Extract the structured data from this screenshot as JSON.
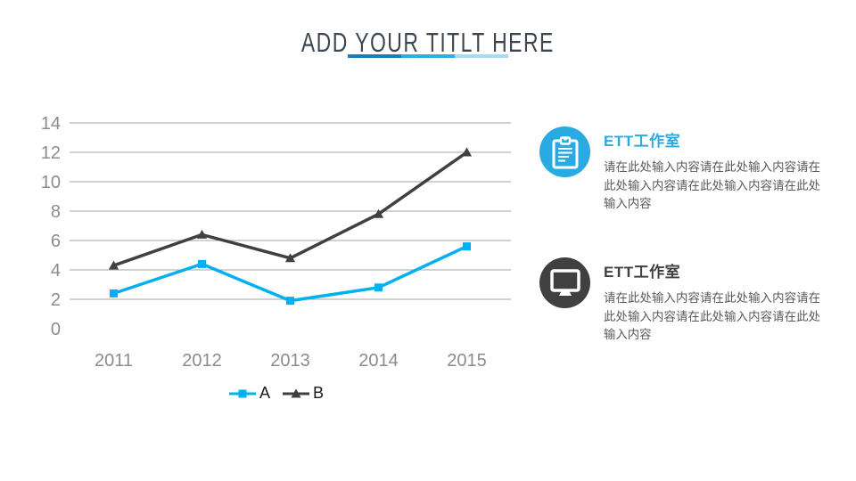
{
  "slide_title": {
    "text": "ADD YOUR TITLT HERE",
    "underline_colors": [
      "#1480c4",
      "#29aee9",
      "#a9daf5"
    ]
  },
  "chart_data": {
    "type": "line",
    "title": "",
    "xlabel": "",
    "ylabel": "",
    "categories": [
      "2011",
      "2012",
      "2013",
      "2014",
      "2015"
    ],
    "series": [
      {
        "name": "A",
        "color": "#00b0f0",
        "marker": "square",
        "values": [
          2.4,
          4.4,
          1.9,
          2.8,
          5.6
        ]
      },
      {
        "name": "B",
        "color": "#404040",
        "marker": "triangle",
        "values": [
          4.3,
          6.4,
          4.8,
          7.8,
          12.0
        ]
      }
    ],
    "ylim": [
      0,
      14
    ],
    "ytick_step": 2,
    "grid": true,
    "gridline_color": "#a6a6a6",
    "axis_label_color": "#8c8c8c",
    "legend_position": "bottom"
  },
  "info_blocks": [
    {
      "icon": "clipboard-icon",
      "icon_bg": "#29abe2",
      "title": "ETT工作室",
      "title_color": "#29abe2",
      "body": "请在此处输入内容请在此处输入内容请在此处输入内容请在此处输入内容请在此处输入内容"
    },
    {
      "icon": "monitor-icon",
      "icon_bg": "#404040",
      "title": "ETT工作室",
      "title_color": "#404040",
      "body": "请在此处输入内容请在此处输入内容请在此处输入内容请在此处输入内容请在此处输入内容"
    }
  ]
}
